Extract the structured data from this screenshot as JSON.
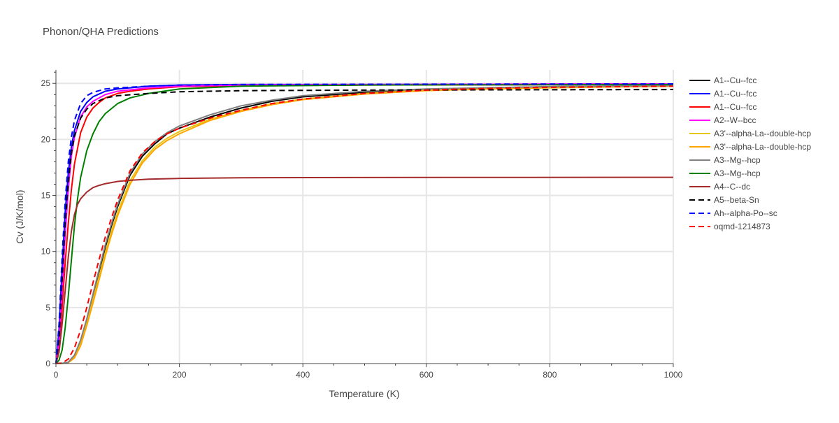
{
  "chart_data": {
    "type": "line",
    "title": "Phonon/QHA Predictions",
    "xlabel": "Temperature (K)",
    "ylabel": "Cv (J/K/mol)",
    "xlim": [
      0,
      1000
    ],
    "ylim": [
      0,
      26.2
    ],
    "x_ticks": [
      0,
      200,
      400,
      600,
      800,
      1000
    ],
    "y_ticks": [
      0,
      5,
      10,
      15,
      20,
      25
    ],
    "grid": true,
    "legend_position": "right",
    "series": [
      {
        "name": "A1--Cu--fcc",
        "color": "#000000",
        "dash": "solid",
        "x": [
          0,
          10,
          20,
          30,
          40,
          50,
          60,
          70,
          80,
          90,
          100,
          120,
          140,
          160,
          180,
          200,
          250,
          300,
          350,
          400,
          500,
          600,
          700,
          800,
          900,
          1000
        ],
        "y": [
          0,
          0.02,
          0.1,
          0.7,
          2.0,
          3.9,
          6.0,
          8.2,
          10.4,
          12.3,
          14.0,
          16.8,
          18.5,
          19.6,
          20.5,
          21.0,
          22.0,
          22.8,
          23.4,
          23.8,
          24.2,
          24.45,
          24.6,
          24.7,
          24.75,
          24.8
        ]
      },
      {
        "name": "A1--Cu--fcc",
        "color": "#0000ff",
        "dash": "solid",
        "x": [
          0,
          5,
          10,
          15,
          20,
          25,
          30,
          40,
          50,
          60,
          80,
          100,
          150,
          200,
          300,
          500,
          1000
        ],
        "y": [
          0,
          3.0,
          8.5,
          13.5,
          17.0,
          19.3,
          20.8,
          22.5,
          23.3,
          23.8,
          24.3,
          24.5,
          24.75,
          24.85,
          24.9,
          24.9,
          24.95
        ]
      },
      {
        "name": "A1--Cu--fcc",
        "color": "#ff0000",
        "dash": "solid",
        "x": [
          0,
          5,
          10,
          15,
          20,
          25,
          30,
          40,
          50,
          60,
          70,
          80,
          100,
          120,
          150,
          200,
          300,
          500,
          1000
        ],
        "y": [
          0,
          1.5,
          5.0,
          9.0,
          12.5,
          15.5,
          17.8,
          20.6,
          22.0,
          22.8,
          23.3,
          23.7,
          24.1,
          24.3,
          24.5,
          24.7,
          24.8,
          24.85,
          24.9
        ]
      },
      {
        "name": "A2--W--bcc",
        "color": "#ff00ff",
        "dash": "solid",
        "x": [
          0,
          5,
          10,
          15,
          20,
          25,
          30,
          40,
          50,
          60,
          80,
          100,
          150,
          200,
          300,
          500,
          1000
        ],
        "y": [
          0,
          2.0,
          6.5,
          11.5,
          15.5,
          18.5,
          20.2,
          22.0,
          22.9,
          23.4,
          24.0,
          24.3,
          24.6,
          24.75,
          24.85,
          24.9,
          24.95
        ]
      },
      {
        "name": "A3'--alpha-La--double-hcp",
        "color": "#e6c619",
        "dash": "solid",
        "x": [
          0,
          10,
          20,
          30,
          40,
          50,
          60,
          70,
          80,
          90,
          100,
          120,
          140,
          160,
          180,
          200,
          250,
          300,
          350,
          400,
          500,
          600,
          700,
          800,
          900,
          1000
        ],
        "y": [
          0,
          0.01,
          0.1,
          0.6,
          1.8,
          3.6,
          5.7,
          7.8,
          9.9,
          11.8,
          13.5,
          16.3,
          18.1,
          19.3,
          20.1,
          20.7,
          21.8,
          22.6,
          23.2,
          23.6,
          24.1,
          24.4,
          24.55,
          24.65,
          24.72,
          24.78
        ]
      },
      {
        "name": "A3'--alpha-La--double-hcp",
        "color": "#ffa500",
        "dash": "solid",
        "x": [
          0,
          10,
          20,
          30,
          40,
          50,
          60,
          70,
          80,
          90,
          100,
          120,
          140,
          160,
          180,
          200,
          250,
          300,
          350,
          400,
          500,
          600,
          700,
          800,
          900,
          1000
        ],
        "y": [
          0,
          0.01,
          0.08,
          0.5,
          1.6,
          3.4,
          5.4,
          7.5,
          9.6,
          11.5,
          13.2,
          16.0,
          17.9,
          19.1,
          19.9,
          20.5,
          21.7,
          22.5,
          23.1,
          23.55,
          24.05,
          24.35,
          24.5,
          24.6,
          24.68,
          24.74
        ]
      },
      {
        "name": "A3--Mg--hcp",
        "color": "#808080",
        "dash": "solid",
        "x": [
          0,
          10,
          20,
          30,
          40,
          50,
          60,
          70,
          80,
          90,
          100,
          120,
          140,
          160,
          180,
          200,
          250,
          300,
          350,
          400,
          500,
          600,
          700,
          800,
          900,
          1000
        ],
        "y": [
          0,
          0.02,
          0.12,
          0.75,
          2.1,
          4.0,
          6.2,
          8.4,
          10.6,
          12.5,
          14.2,
          17.0,
          18.7,
          19.8,
          20.6,
          21.2,
          22.2,
          23.0,
          23.5,
          23.9,
          24.3,
          24.5,
          24.62,
          24.7,
          24.76,
          24.8
        ]
      },
      {
        "name": "A3--Mg--hcp",
        "color": "#008000",
        "dash": "solid",
        "x": [
          0,
          5,
          10,
          15,
          20,
          25,
          30,
          35,
          40,
          50,
          60,
          70,
          80,
          100,
          120,
          150,
          200,
          300,
          500,
          1000
        ],
        "y": [
          0,
          0.3,
          1.2,
          3.2,
          6.0,
          9.2,
          12.3,
          14.7,
          16.6,
          19.0,
          20.5,
          21.6,
          22.3,
          23.2,
          23.7,
          24.1,
          24.5,
          24.75,
          24.85,
          24.9
        ]
      },
      {
        "name": "A4--C--dc",
        "color": "#a52a2a",
        "dash": "solid",
        "x": [
          0,
          5,
          10,
          15,
          20,
          25,
          30,
          35,
          40,
          50,
          60,
          70,
          80,
          100,
          120,
          150,
          200,
          300,
          500,
          1000
        ],
        "y": [
          0,
          1.0,
          3.5,
          6.5,
          9.5,
          11.8,
          13.3,
          14.2,
          14.7,
          15.3,
          15.7,
          15.9,
          16.05,
          16.25,
          16.35,
          16.45,
          16.52,
          16.58,
          16.6,
          16.62
        ]
      },
      {
        "name": "A5--beta-Sn",
        "color": "#000000",
        "dash": "dash",
        "x": [
          0,
          5,
          10,
          15,
          20,
          25,
          30,
          40,
          50,
          60,
          80,
          100,
          150,
          200,
          300,
          500,
          1000
        ],
        "y": [
          0,
          2.2,
          7.5,
          12.5,
          16.2,
          18.8,
          20.3,
          21.9,
          22.7,
          23.2,
          23.7,
          23.9,
          24.1,
          24.25,
          24.35,
          24.4,
          24.45
        ]
      },
      {
        "name": "Ah--alpha-Po--sc",
        "color": "#0000ff",
        "dash": "dash",
        "x": [
          0,
          5,
          10,
          15,
          20,
          25,
          30,
          40,
          50,
          60,
          80,
          100,
          150,
          200,
          300,
          500,
          1000
        ],
        "y": [
          0,
          3.5,
          9.5,
          14.5,
          18.0,
          20.2,
          21.7,
          23.2,
          23.9,
          24.2,
          24.5,
          24.6,
          24.75,
          24.85,
          24.9,
          24.92,
          24.95
        ]
      },
      {
        "name": "oqmd-1214873",
        "color": "#ff0000",
        "dash": "dash",
        "x": [
          0,
          10,
          20,
          30,
          40,
          50,
          60,
          70,
          80,
          90,
          100,
          120,
          140,
          160,
          180,
          200,
          250,
          300,
          350,
          400,
          500,
          600,
          700,
          800,
          900,
          1000
        ],
        "y": [
          0,
          0.05,
          0.4,
          1.4,
          3.0,
          5.0,
          7.2,
          9.3,
          11.3,
          13.0,
          14.6,
          17.2,
          18.8,
          19.8,
          20.5,
          21.0,
          21.9,
          22.6,
          23.2,
          23.6,
          24.1,
          24.4,
          24.55,
          24.65,
          24.7,
          24.75
        ]
      }
    ]
  }
}
